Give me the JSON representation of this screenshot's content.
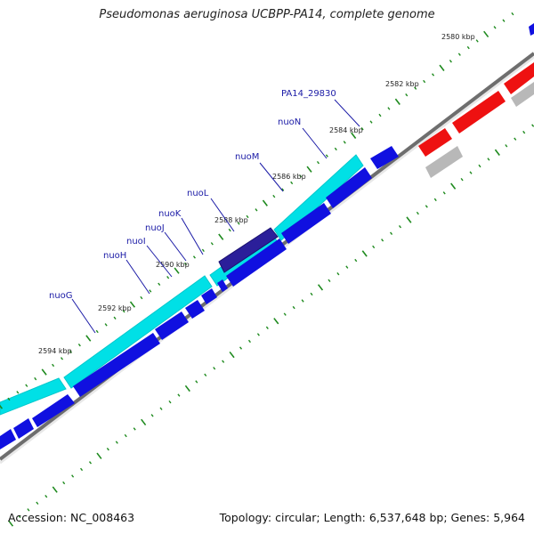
{
  "title": "Pseudomonas aeruginosa UCBPP-PA14, complete genome",
  "footer": {
    "accession": "Accession: NC_008463",
    "summary": "Topology: circular; Length: 6,537,648 bp; Genes: 5,964"
  },
  "colors": {
    "cyan_track": "#00e0e6",
    "blue_track": "#1010e0",
    "red_track": "#ee1111",
    "gray_track": "#b8b8b8",
    "backbone": "#707070",
    "tick_marks": "#1e8a1e",
    "gene_label": "#1a1aa6"
  },
  "diagram": {
    "ticks": [
      {
        "label": "2580 kbp"
      },
      {
        "label": "2582 kbp"
      },
      {
        "label": "2584 kbp"
      },
      {
        "label": "2586 kbp"
      },
      {
        "label": "2588 kbp"
      },
      {
        "label": "2590 kbp"
      },
      {
        "label": "2592 kbp"
      },
      {
        "label": "2594 kbp"
      }
    ],
    "gene_labels": [
      {
        "name": "PA14_29830"
      },
      {
        "name": "nuoN"
      },
      {
        "name": "nuoM"
      },
      {
        "name": "nuoL"
      },
      {
        "name": "nuoK"
      },
      {
        "name": "nuoJ"
      },
      {
        "name": "nuoI"
      },
      {
        "name": "nuoH"
      },
      {
        "name": "nuoG"
      }
    ]
  }
}
